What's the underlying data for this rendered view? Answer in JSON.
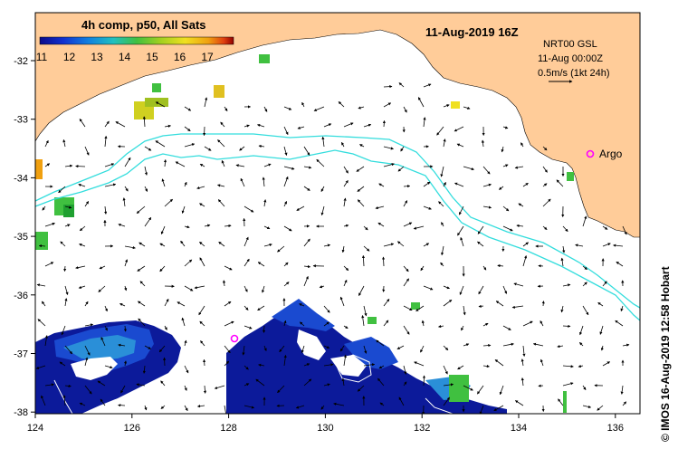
{
  "header": {
    "product": "4h comp, p50, All Sats",
    "date": "11-Aug-2019 16Z"
  },
  "colorbar": {
    "ticks": [
      "11",
      "12",
      "13",
      "14",
      "15",
      "16",
      "17"
    ],
    "colors": [
      "#0a0a8a",
      "#1030d0",
      "#1080e0",
      "#20c0c0",
      "#40c040",
      "#a0d020",
      "#f0e020",
      "#f0a010",
      "#e04010",
      "#900000"
    ]
  },
  "current_info": {
    "line1": "NRT00 GSL",
    "line2": "11-Aug 00:00Z",
    "line3": "0.5m/s (1kt 24h)"
  },
  "argo": {
    "label": "Argo",
    "color": "#ff00ff"
  },
  "colors": {
    "land": "#ffcc99",
    "contour": "#33dddd",
    "frame": "#000000"
  },
  "axes": {
    "x_ticks": [
      "124",
      "126",
      "128",
      "130",
      "132",
      "134",
      "136"
    ],
    "y_ticks": [
      "-32",
      "-33",
      "-34",
      "-35",
      "-36",
      "-37",
      "-38"
    ]
  },
  "credit": "© IMOS 16-Aug-2019 12:58 Hobart"
}
